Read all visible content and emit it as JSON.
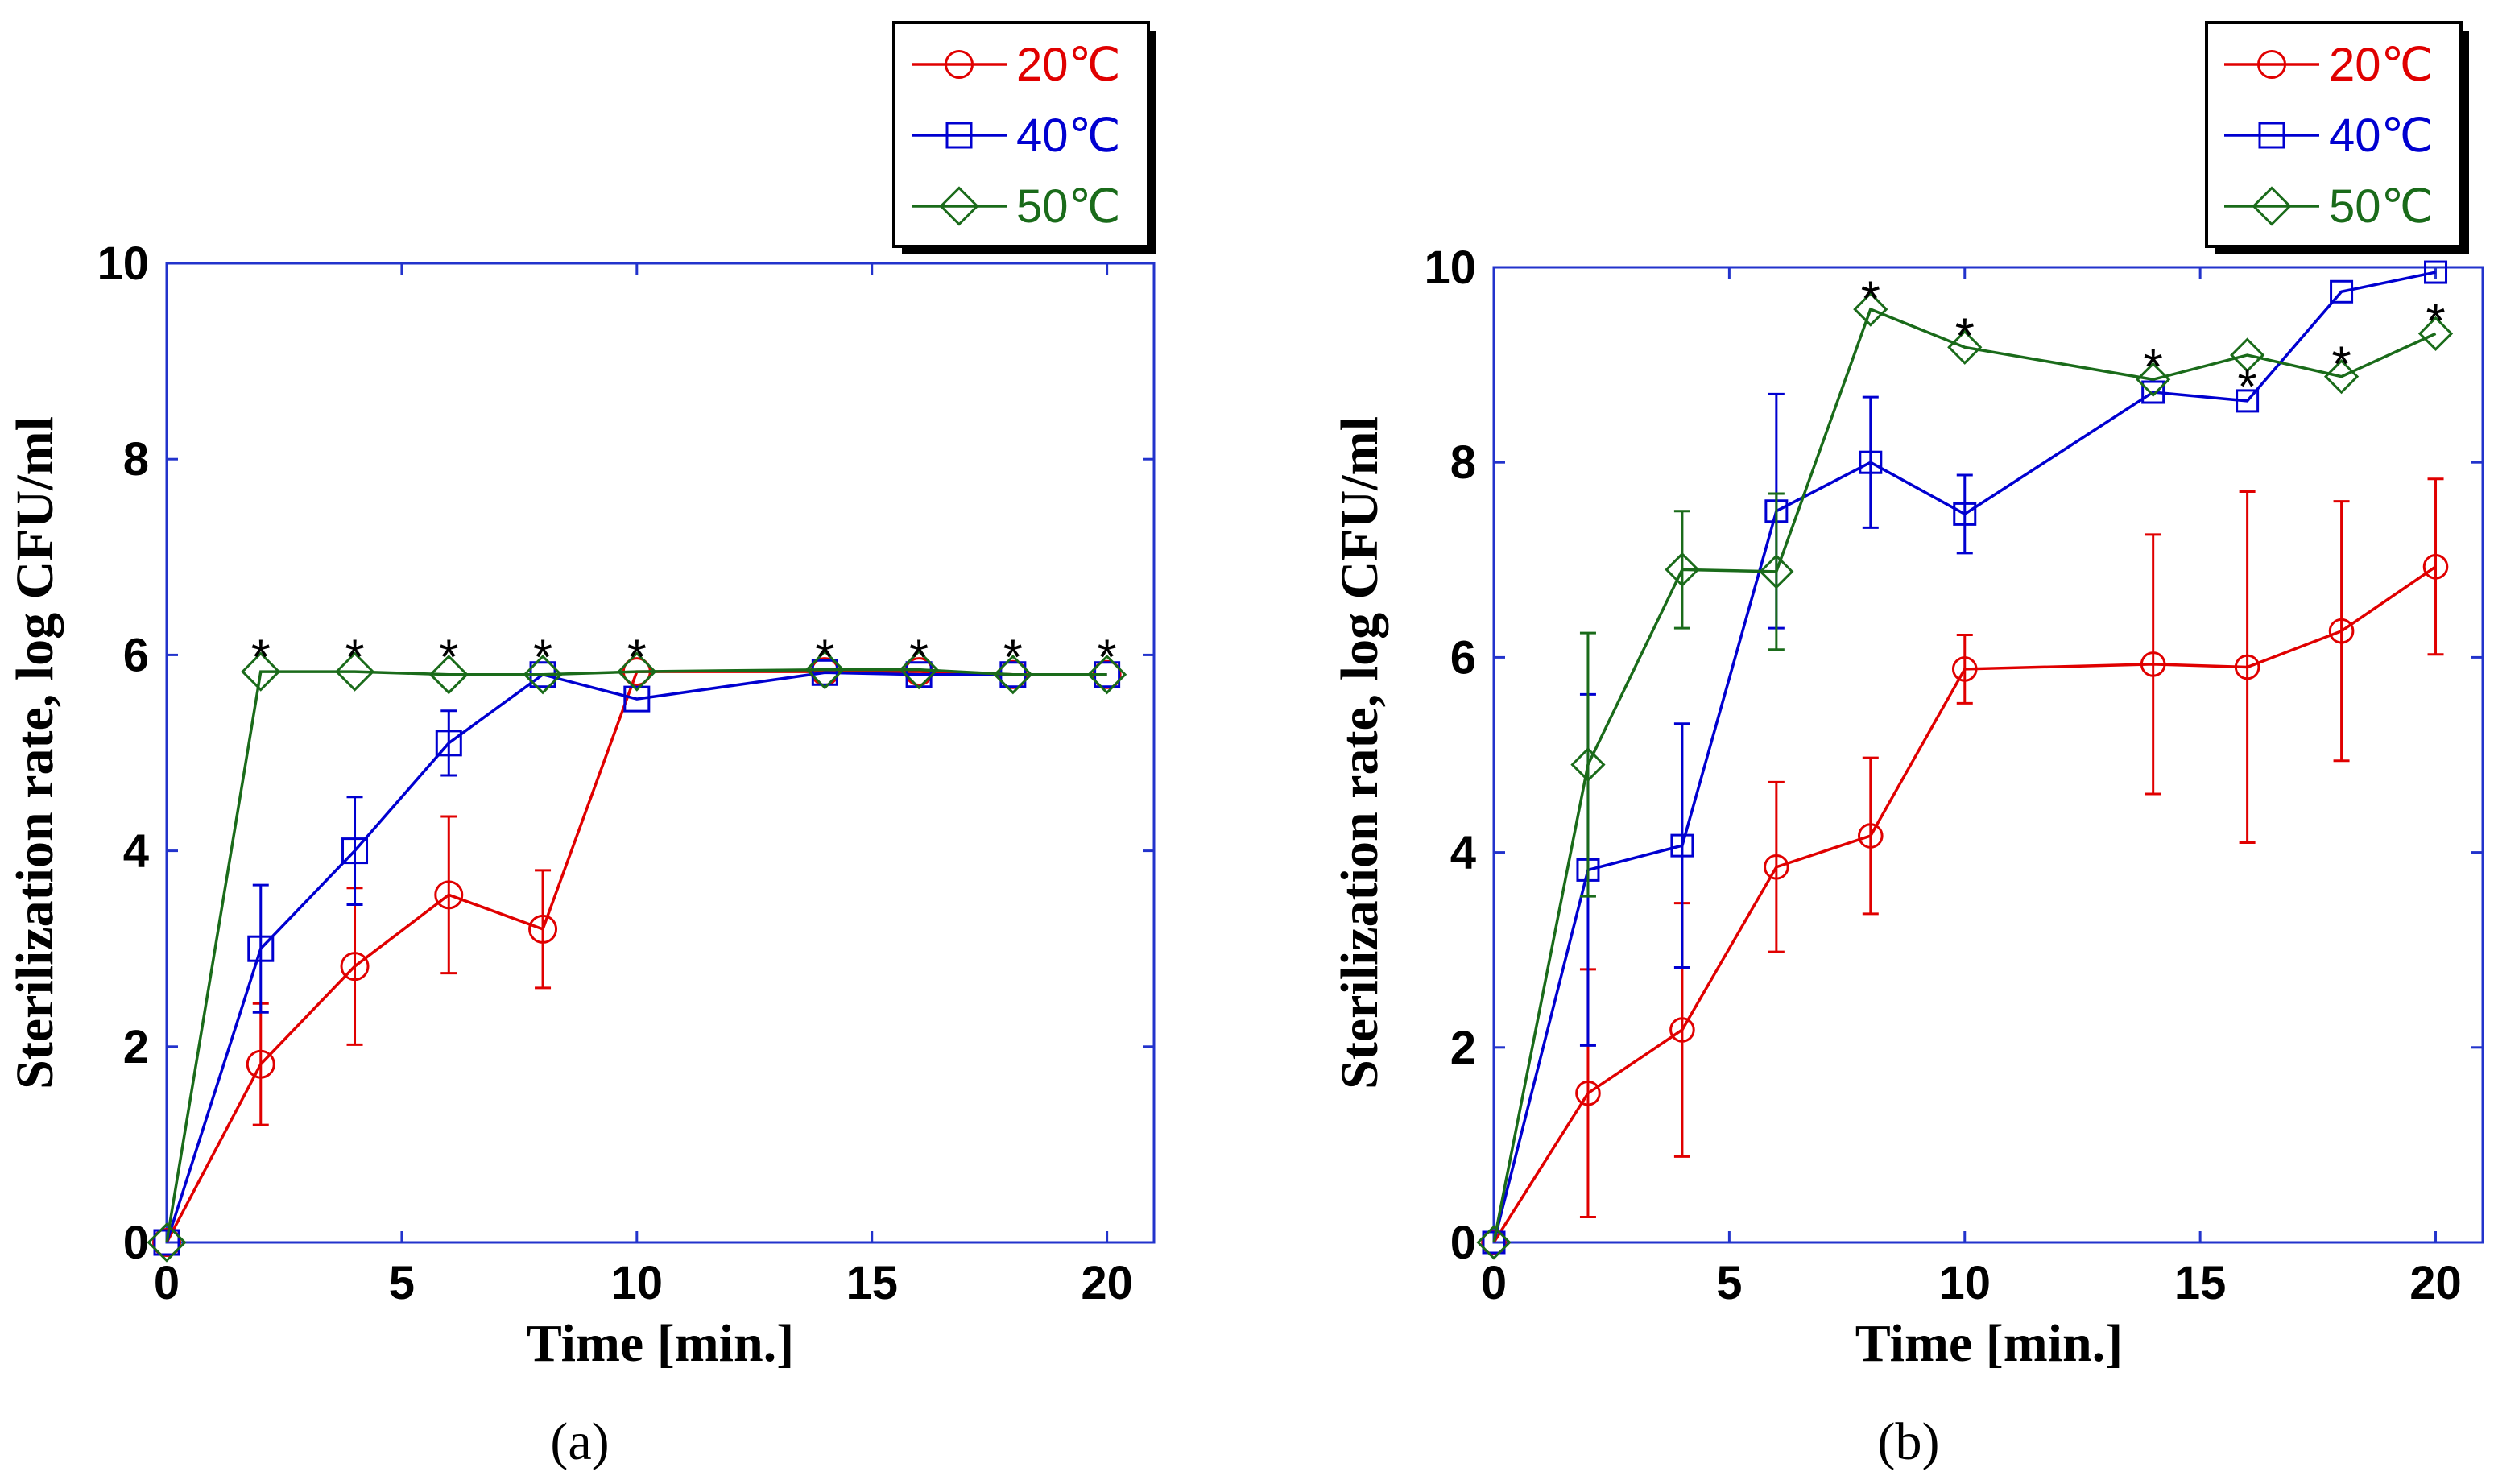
{
  "chart_data": [
    {
      "type": "line",
      "panel_label": "(a)",
      "xlabel": "Time [min.]",
      "ylabel": "Sterilization rate, log CFU/ml",
      "xlim": [
        0,
        21
      ],
      "ylim": [
        0,
        10
      ],
      "xticks": [
        "0",
        "5",
        "10",
        "15",
        "20"
      ],
      "yticks": [
        "0",
        "2",
        "4",
        "6",
        "8",
        "10"
      ],
      "legend": {
        "position": "top-right",
        "entries": [
          "20℃",
          "40℃",
          "50℃"
        ]
      },
      "series": [
        {
          "name": "20℃",
          "color": "#e00000",
          "marker": "circle",
          "x": [
            0,
            2,
            4,
            6,
            8,
            10,
            14,
            16,
            18,
            20
          ],
          "y": [
            0,
            1.82,
            2.82,
            3.55,
            3.2,
            5.83,
            5.83,
            5.83,
            5.8,
            5.8
          ],
          "err": [
            0,
            0.62,
            0.8,
            0.8,
            0.6,
            0,
            0,
            0,
            0,
            0
          ]
        },
        {
          "name": "40℃",
          "color": "#0000d0",
          "marker": "square",
          "x": [
            0,
            2,
            4,
            6,
            8,
            10,
            14,
            16,
            18,
            20
          ],
          "y": [
            0,
            3.0,
            4.0,
            5.1,
            5.8,
            5.55,
            5.82,
            5.8,
            5.8,
            5.8
          ],
          "err": [
            0,
            0.65,
            0.55,
            0.33,
            0,
            0,
            0,
            0,
            0,
            0
          ]
        },
        {
          "name": "50℃",
          "color": "#1a6b1a",
          "marker": "diamond",
          "x": [
            0,
            2,
            4,
            6,
            8,
            10,
            14,
            16,
            18,
            20
          ],
          "y": [
            0,
            5.83,
            5.83,
            5.8,
            5.8,
            5.83,
            5.85,
            5.85,
            5.8,
            5.8
          ],
          "err": [
            0,
            0,
            0,
            0,
            0,
            0,
            0,
            0,
            0,
            0
          ]
        }
      ],
      "annotations": [
        {
          "text": "*",
          "x": 2,
          "y": 6.05
        },
        {
          "text": "*",
          "x": 4,
          "y": 6.05
        },
        {
          "text": "*",
          "x": 6,
          "y": 6.05
        },
        {
          "text": "*",
          "x": 8,
          "y": 6.05
        },
        {
          "text": "*",
          "x": 10,
          "y": 6.05
        },
        {
          "text": "*",
          "x": 14,
          "y": 6.05
        },
        {
          "text": "*",
          "x": 16,
          "y": 6.05
        },
        {
          "text": "*",
          "x": 18,
          "y": 6.05
        },
        {
          "text": "*",
          "x": 20,
          "y": 6.05
        }
      ]
    },
    {
      "type": "line",
      "panel_label": "(b)",
      "xlabel": "Time [min.]",
      "ylabel": "Sterilization rate, log CFU/ml",
      "xlim": [
        0,
        21
      ],
      "ylim": [
        0,
        10
      ],
      "xticks": [
        "0",
        "5",
        "10",
        "15",
        "20"
      ],
      "yticks": [
        "0",
        "2",
        "4",
        "6",
        "8",
        "10"
      ],
      "legend": {
        "position": "top-right",
        "entries": [
          "20℃",
          "40℃",
          "50℃"
        ]
      },
      "series": [
        {
          "name": "20℃",
          "color": "#e00000",
          "marker": "circle",
          "x": [
            0,
            2,
            4,
            6,
            8,
            10,
            14,
            16,
            18,
            20
          ],
          "y": [
            0,
            1.53,
            2.18,
            3.85,
            4.17,
            5.88,
            5.93,
            5.9,
            6.27,
            6.93
          ],
          "err": [
            0,
            1.27,
            1.3,
            0.87,
            0.8,
            0.35,
            1.33,
            1.8,
            1.33,
            0.9
          ]
        },
        {
          "name": "40℃",
          "color": "#0000d0",
          "marker": "square",
          "x": [
            0,
            2,
            4,
            6,
            8,
            10,
            14,
            16,
            18,
            20
          ],
          "y": [
            0,
            3.82,
            4.07,
            7.5,
            8.0,
            7.47,
            8.72,
            8.63,
            9.75,
            9.95
          ],
          "err": [
            0,
            1.8,
            1.25,
            1.2,
            0.67,
            0.4,
            0,
            0,
            0,
            0
          ]
        },
        {
          "name": "50℃",
          "color": "#1a6b1a",
          "marker": "diamond",
          "x": [
            0,
            2,
            4,
            6,
            8,
            10,
            14,
            16,
            18,
            20
          ],
          "y": [
            0,
            4.9,
            6.9,
            6.88,
            9.57,
            9.18,
            8.85,
            9.1,
            8.88,
            9.32
          ],
          "err": [
            0,
            1.35,
            0.6,
            0.8,
            0,
            0,
            0,
            0,
            0,
            0
          ]
        }
      ],
      "annotations": [
        {
          "text": "*",
          "x": 8,
          "y": 9.75
        },
        {
          "text": "*",
          "x": 10,
          "y": 9.37
        },
        {
          "text": "*",
          "x": 14,
          "y": 9.05
        },
        {
          "text": "*",
          "x": 16,
          "y": 8.85
        },
        {
          "text": "*",
          "x": 18,
          "y": 9.08
        },
        {
          "text": "*",
          "x": 20,
          "y": 9.52
        }
      ]
    }
  ]
}
